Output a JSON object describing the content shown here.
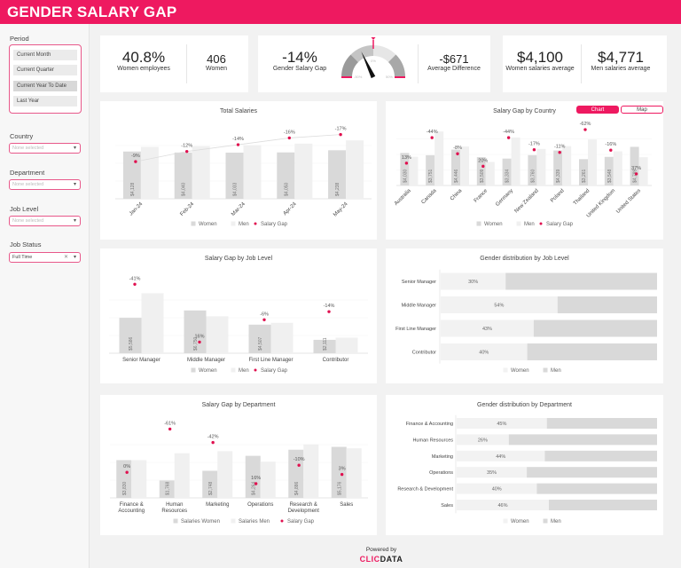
{
  "header": {
    "title": "GENDER SALARY GAP"
  },
  "colors": {
    "accent": "#ee1960",
    "women": "#d9d9d9",
    "men": "#f0f0f0",
    "gap": "#e0104f"
  },
  "sidebar": {
    "period_label": "Period",
    "period_options": [
      "Current Month",
      "Current Quarter",
      "Current Year To Date",
      "Last Year"
    ],
    "period_selected": "Current Year To Date",
    "country_label": "Country",
    "country_placeholder": "None selected",
    "department_label": "Department",
    "department_placeholder": "None selected",
    "job_level_label": "Job Level",
    "job_level_placeholder": "None selected",
    "job_status_label": "Job Status",
    "job_status_value": "Full Time"
  },
  "kpis": {
    "women_employees_pct": "40.8%",
    "women_employees_label": "Women employees",
    "women_count": "406",
    "women_count_label": "Women",
    "gender_gap": "-14%",
    "gender_gap_label": "Gender Salary Gap",
    "gauge": {
      "value": -14,
      "min": -50,
      "max": 50,
      "target": 0,
      "min_label": "-50%",
      "mid_label": "0%",
      "max_label": "50%"
    },
    "avg_diff": "-$671",
    "avg_diff_label": "Average Difference",
    "women_avg": "$4,100",
    "women_avg_label": "Women salaries average",
    "men_avg": "$4,771",
    "men_avg_label": "Men salaries average"
  },
  "country_toggle": {
    "chart": "Chart",
    "map": "Map"
  },
  "chart_data": [
    {
      "id": "total",
      "type": "bar",
      "title": "Total Salaries",
      "categories": [
        "Jan-24",
        "Feb-24",
        "Mar-24",
        "Apr-24",
        "May-24"
      ],
      "women": [
        4128,
        4040,
        4033,
        4050,
        4238
      ],
      "women_labels": [
        "$4,128",
        "$4,040",
        "$4,033",
        "$4,050",
        "$4,238"
      ],
      "men": [
        4536,
        4591,
        4690,
        4821,
        5106
      ],
      "gap": [
        -9,
        -12,
        -14,
        -16,
        -17
      ],
      "gap_labels": [
        "-9%",
        "-12%",
        "-14%",
        "-16%",
        "-17%"
      ],
      "ylim": [
        0,
        6200
      ],
      "gap_range": [
        -2,
        19
      ],
      "legend": [
        "Women",
        "Men",
        "Salary Gap"
      ]
    },
    {
      "id": "country",
      "type": "bar",
      "title": "Salary Gap by Country",
      "categories": [
        "Australia",
        "Canada",
        "China",
        "France",
        "Germany",
        "New Zealand",
        "Poland",
        "Thailand",
        "United Kingdom",
        "United States"
      ],
      "women": [
        4030,
        3751,
        4446,
        3509,
        3334,
        3760,
        4339,
        3261,
        3548,
        4789
      ],
      "women_labels": [
        "$4,030",
        "$3,751",
        "$4,446",
        "$3,509",
        "$3,334",
        "$3,760",
        "$4,339",
        "$3,261",
        "$3,548",
        "$4,789"
      ],
      "men": [
        3560,
        6700,
        4830,
        2920,
        5950,
        4530,
        4880,
        5700,
        4230,
        3500
      ],
      "gap": [
        13,
        -44,
        -8,
        20,
        -44,
        -17,
        -11,
        -62,
        -16,
        37
      ],
      "gap_labels": [
        "13%",
        "-44%",
        "-8%",
        "20%",
        "-44%",
        "-17%",
        "-11%",
        "-62%",
        "-16%",
        "37%"
      ],
      "ylim": [
        0,
        7700
      ],
      "gap_range": [
        -63,
        76
      ],
      "legend": [
        "Women",
        "Men",
        "Salary Gap"
      ]
    },
    {
      "id": "joblevel",
      "type": "bar",
      "title": "Salary Gap by Job Level",
      "categories": [
        "Senior Manager",
        "Middle Manager",
        "First Line Manager",
        "Contributor"
      ],
      "women": [
        5586,
        6750,
        4507,
        2111
      ],
      "women_labels": [
        "$5,586",
        "$6,750",
        "$4,507",
        "$2,111"
      ],
      "men": [
        9468,
        5819,
        4795,
        2455
      ],
      "gap": [
        -41,
        16,
        -6,
        -14
      ],
      "gap_labels": [
        "-41%",
        "16%",
        "-6%",
        "-14%"
      ],
      "ylim": [
        0,
        11200
      ],
      "gap_range": [
        -27,
        43
      ],
      "legend": [
        "Women",
        "Men",
        "Salary Gap"
      ]
    },
    {
      "id": "department",
      "type": "bar",
      "title": "Salary Gap by Department",
      "categories": [
        "Finance & Accounting",
        "Human Resources",
        "Marketing",
        "Operations",
        "Research & Development",
        "Sales"
      ],
      "women": [
        3830,
        1768,
        2748,
        4264,
        4886,
        5176
      ],
      "women_labels": [
        "$3,830",
        "$1,768",
        "$2,748",
        "$4,264",
        "$4,886",
        "$5,176"
      ],
      "men": [
        3830,
        4533,
        4738,
        3676,
        5429,
        5025
      ],
      "gap": [
        0,
        -61,
        -42,
        16,
        -10,
        3
      ],
      "gap_labels": [
        "0%",
        "-61%",
        "-42%",
        "16%",
        "-10%",
        "3%"
      ],
      "ylim": [
        0,
        7200
      ],
      "gap_range": [
        -36,
        64
      ],
      "legend": [
        "Salaries Women",
        "Salaries Men",
        "Salary Gap"
      ]
    },
    {
      "id": "jobdist",
      "type": "bar",
      "stacked": true,
      "title": "Gender distribution by Job Level",
      "categories": [
        "Senior Manager",
        "Middle Manager",
        "First Line Manager",
        "Contributor"
      ],
      "women_pct": [
        30,
        54,
        43,
        40
      ],
      "women_labels": [
        "30%",
        "54%",
        "43%",
        "40%"
      ],
      "legend": [
        "Women",
        "Men"
      ]
    },
    {
      "id": "deptdist",
      "type": "bar",
      "stacked": true,
      "title": "Gender distribution by Department",
      "categories": [
        "Finance & Accounting",
        "Human Resources",
        "Marketing",
        "Operations",
        "Research & Development",
        "Sales"
      ],
      "women_pct": [
        45,
        26,
        44,
        35,
        40,
        46
      ],
      "women_labels": [
        "45%",
        "26%",
        "44%",
        "35%",
        "40%",
        "46%"
      ],
      "legend": [
        "Women",
        "Men"
      ]
    }
  ],
  "footer": {
    "powered_by": "Powered by",
    "logo_a": "CLIC",
    "logo_b": "DATA"
  }
}
